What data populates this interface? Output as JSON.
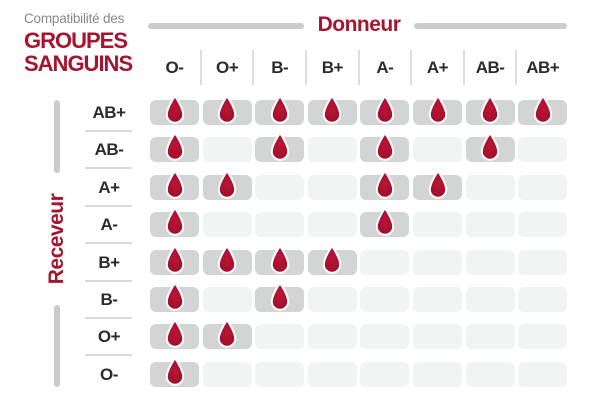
{
  "title": {
    "prefix": "Compatibilité des",
    "main_line1": "GROUPES",
    "main_line2": "SANGUINS"
  },
  "axes": {
    "donor": "Donneur",
    "recipient": "Receveur"
  },
  "chart_data": {
    "type": "heatmap",
    "title": "Compatibilité des GROUPES SANGUINS",
    "x_label": "Donneur",
    "y_label": "Receveur",
    "columns": [
      "O-",
      "O+",
      "B-",
      "B+",
      "A-",
      "A+",
      "AB-",
      "AB+"
    ],
    "rows": [
      "AB+",
      "AB-",
      "A+",
      "A-",
      "B+",
      "B-",
      "O+",
      "O-"
    ],
    "matrix": [
      [
        1,
        1,
        1,
        1,
        1,
        1,
        1,
        1
      ],
      [
        1,
        0,
        1,
        0,
        1,
        0,
        1,
        0
      ],
      [
        1,
        1,
        0,
        0,
        1,
        1,
        0,
        0
      ],
      [
        1,
        0,
        0,
        0,
        1,
        0,
        0,
        0
      ],
      [
        1,
        1,
        1,
        1,
        0,
        0,
        0,
        0
      ],
      [
        1,
        0,
        1,
        0,
        0,
        0,
        0,
        0
      ],
      [
        1,
        1,
        0,
        0,
        0,
        0,
        0,
        0
      ],
      [
        1,
        0,
        0,
        0,
        0,
        0,
        0,
        0
      ]
    ],
    "marker_icon": "blood-drop-icon",
    "legend_position": "none",
    "grid": "off"
  },
  "colors": {
    "accent_red": "#a51530",
    "drop_red_light": "#bc1533",
    "drop_red_dark": "#8f0e28",
    "text_dark": "#2b2b2d",
    "text_gray": "#87898c",
    "cell_filled": "#d3d5d5",
    "cell_empty": "#f2f3f3",
    "axis_line_gray": "#c9cbcd"
  }
}
